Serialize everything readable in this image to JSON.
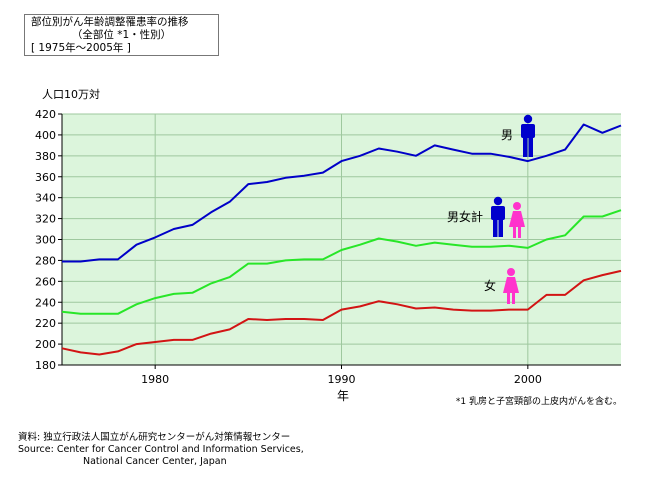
{
  "title": {
    "line1": "部位別がん年齢調整罹患率の推移",
    "line2": "（全部位 *1・性別）",
    "line3": "[ 1975年〜2005年 ]"
  },
  "colors": {
    "male": "#0000c8",
    "total": "#28e628",
    "female": "#d21414",
    "male_icon": "#0000cc",
    "female_icon": "#ff33cc",
    "plot_bg": "#dcf5dc",
    "grid": "#9ec89e"
  },
  "icons": {
    "male": "male-figure-icon",
    "female": "female-figure-icon"
  },
  "chart_data": {
    "type": "line",
    "ylabel": "人口10万対",
    "xlabel": "年",
    "xlim": [
      1975,
      2005
    ],
    "ylim": [
      180,
      420
    ],
    "yticks": [
      180,
      200,
      220,
      240,
      260,
      280,
      300,
      320,
      340,
      360,
      380,
      400,
      420
    ],
    "xticks": [
      1980,
      1990,
      2000
    ],
    "grid": true,
    "x": [
      1975,
      1976,
      1977,
      1978,
      1979,
      1980,
      1981,
      1982,
      1983,
      1984,
      1985,
      1986,
      1987,
      1988,
      1989,
      1990,
      1991,
      1992,
      1993,
      1994,
      1995,
      1996,
      1997,
      1998,
      1999,
      2000,
      2001,
      2002,
      2003,
      2004,
      2005
    ],
    "series": [
      {
        "name": "男",
        "key": "male",
        "values": [
          279,
          279,
          281,
          281,
          295,
          302,
          310,
          314,
          326,
          336,
          353,
          355,
          359,
          361,
          364,
          375,
          380,
          387,
          384,
          380,
          390,
          386,
          382,
          382,
          379,
          375,
          380,
          386,
          410,
          402,
          409
        ]
      },
      {
        "name": "男女計",
        "key": "total",
        "values": [
          231,
          229,
          229,
          229,
          238,
          244,
          248,
          249,
          258,
          264,
          277,
          277,
          280,
          281,
          281,
          290,
          295,
          301,
          298,
          294,
          297,
          295,
          293,
          293,
          294,
          292,
          300,
          304,
          322,
          322,
          328
        ]
      },
      {
        "name": "女",
        "key": "female",
        "values": [
          196,
          192,
          190,
          193,
          200,
          202,
          204,
          204,
          210,
          214,
          224,
          223,
          224,
          224,
          223,
          233,
          236,
          241,
          238,
          234,
          235,
          233,
          232,
          232,
          233,
          233,
          247,
          247,
          261,
          266,
          270
        ]
      }
    ],
    "footnote": "*1 乳房と子宮頸部の上皮内がんを含む。"
  },
  "source": {
    "line1": "資料: 独立行政法人国立がん研究センターがん対策情報センター",
    "line2": "Source: Center for Cancer Control and Information Services,",
    "line3": "National Cancer Center, Japan"
  }
}
